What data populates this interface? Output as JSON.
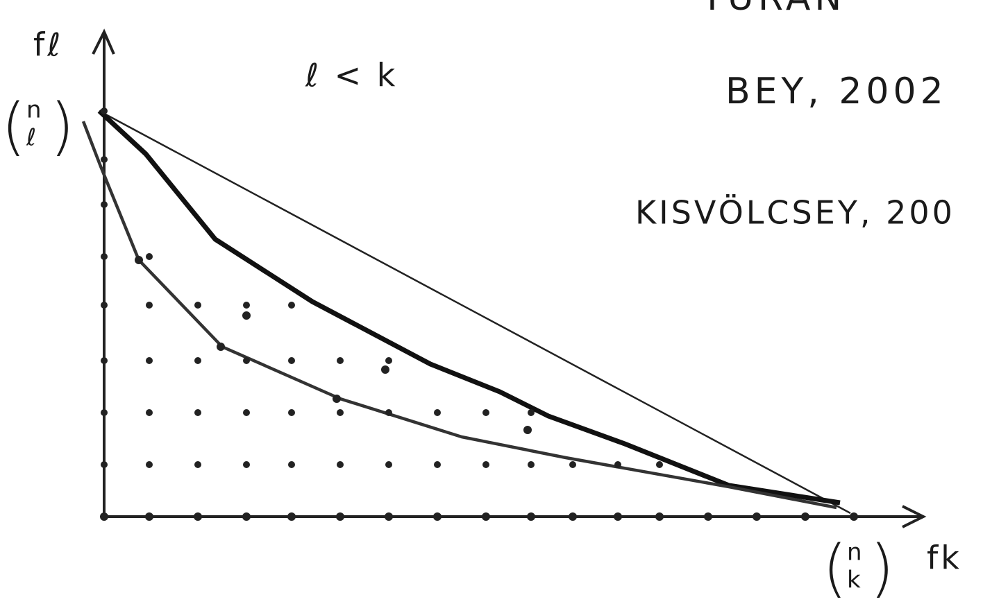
{
  "references": [
    "TURÁN",
    "BEY, 2002",
    "KISVÖLCSEY, 200"
  ],
  "condition": "ℓ < k",
  "axes": {
    "y_label": "fℓ",
    "x_label": "fk",
    "y_max": {
      "top": "n",
      "bottom": "ℓ"
    },
    "x_max": {
      "top": "n",
      "bottom": "k"
    }
  }
}
